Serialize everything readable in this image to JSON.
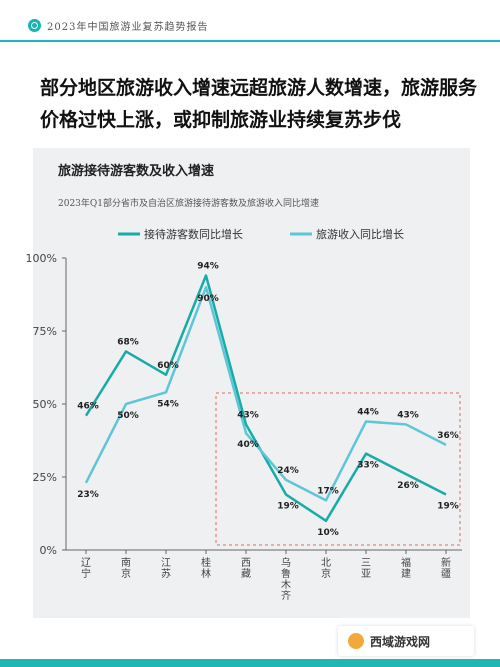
{
  "header": {
    "text": "2023年中国旅游业复苏趋势报告"
  },
  "headline": {
    "line1": "部分地区旅游收入增速远超旅游人数增速，旅游服务",
    "line2": "价格过快上涨，或抑制旅游业持续复苏步伐"
  },
  "watermark": {
    "text": "西域游戏网"
  },
  "colors": {
    "accent": "#1fb6b6",
    "series1": "#17aca6",
    "series2": "#5ec6d6",
    "highlight_box": "#e46a5c"
  },
  "chart_data": {
    "type": "line",
    "title": "旅游接待游客数及收入增速",
    "subtitle": "2023年Q1部分省市及自治区旅游接待游客数及旅游收入同比增速",
    "categories": [
      "辽宁",
      "南京",
      "江苏",
      "桂林",
      "西藏",
      "乌鲁木齐",
      "北京",
      "三亚",
      "福建",
      "新疆"
    ],
    "series": [
      {
        "name": "接待游客数同比增长",
        "values": [
          46,
          68,
          60,
          94,
          43,
          19,
          10,
          33,
          26,
          19
        ],
        "labels": [
          "46%",
          "68%",
          "60%",
          "94%",
          "43%",
          "19%",
          "10%",
          "33%",
          "26%",
          "19%"
        ]
      },
      {
        "name": "旅游收入同比增长",
        "values": [
          23,
          50,
          54,
          90,
          40,
          24,
          17,
          44,
          43,
          36
        ],
        "labels": [
          "23%",
          "50%",
          "54%",
          "90%",
          "40%",
          "24%",
          "17%",
          "44%",
          "43%",
          "36%"
        ]
      }
    ],
    "y_ticks": [
      "0%",
      "25%",
      "50%",
      "75%",
      "100%"
    ],
    "ylim": [
      0,
      100
    ],
    "legend_position": "top-center",
    "grid": false,
    "highlight_range": [
      "西藏",
      "新疆"
    ]
  }
}
